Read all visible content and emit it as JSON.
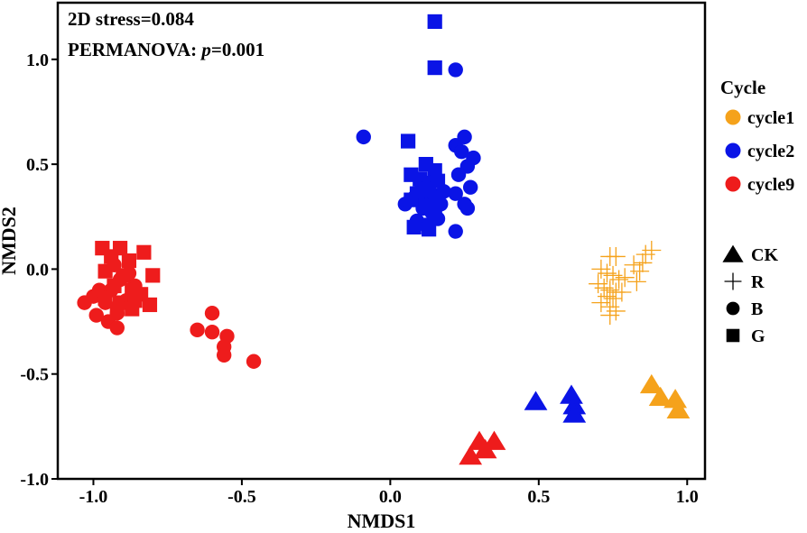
{
  "chart_data": {
    "type": "scatter",
    "title": "",
    "xlabel": "NMDS1",
    "ylabel": "NMDS2",
    "xlim": [
      -1.12,
      1.06
    ],
    "ylim": [
      -1.0,
      1.27
    ],
    "xticks": [
      -1.0,
      -0.5,
      0.0,
      0.5,
      1.0
    ],
    "xtick_labels": [
      "-1.0",
      "-0.5",
      "0.0",
      "0.5",
      "1.0"
    ],
    "yticks": [
      -1.0,
      -0.5,
      0.0,
      0.5,
      1.0
    ],
    "ytick_labels": [
      "-1.0",
      "-0.5",
      "0.0",
      "0.5",
      "1.0"
    ],
    "annotations": {
      "stress": "2D stress=0.084",
      "permanova_prefix": "PERMANOVA: ",
      "permanova_p": "p",
      "permanova_value": "=0.001"
    },
    "legend": {
      "color_title": "Cycle",
      "colors": [
        {
          "label": "cycle1",
          "color": "#F5A21B"
        },
        {
          "label": "cycle2",
          "color": "#0A14E6"
        },
        {
          "label": "cycle9",
          "color": "#EE1C1C"
        }
      ],
      "shapes": [
        {
          "label": "CK",
          "shape": "triangle"
        },
        {
          "label": "R",
          "shape": "plus"
        },
        {
          "label": "B",
          "shape": "circle"
        },
        {
          "label": "G",
          "shape": "square"
        }
      ]
    },
    "series": [
      {
        "name": "cycle1-CK",
        "cycle": "cycle1",
        "shape": "triangle",
        "points": [
          [
            0.88,
            -0.55
          ],
          [
            0.91,
            -0.61
          ],
          [
            0.96,
            -0.62
          ],
          [
            0.97,
            -0.67
          ]
        ]
      },
      {
        "name": "cycle1-R",
        "cycle": "cycle1",
        "shape": "plus",
        "points": [
          [
            0.74,
            0.06
          ],
          [
            0.76,
            0.06
          ],
          [
            0.71,
            0.0
          ],
          [
            0.73,
            -0.02
          ],
          [
            0.75,
            -0.03
          ],
          [
            0.77,
            -0.05
          ],
          [
            0.7,
            -0.07
          ],
          [
            0.72,
            -0.09
          ],
          [
            0.74,
            -0.1
          ],
          [
            0.76,
            -0.11
          ],
          [
            0.78,
            -0.11
          ],
          [
            0.73,
            -0.13
          ],
          [
            0.75,
            -0.14
          ],
          [
            0.71,
            -0.16
          ],
          [
            0.74,
            -0.18
          ],
          [
            0.76,
            -0.2
          ],
          [
            0.74,
            -0.22
          ],
          [
            0.79,
            -0.04
          ],
          [
            0.82,
            0.02
          ],
          [
            0.84,
            -0.01
          ],
          [
            0.86,
            0.07
          ],
          [
            0.85,
            0.03
          ],
          [
            0.88,
            0.09
          ],
          [
            0.83,
            -0.06
          ]
        ]
      },
      {
        "name": "cycle2-CK",
        "cycle": "cycle2",
        "shape": "triangle",
        "points": [
          [
            0.49,
            -0.63
          ],
          [
            0.61,
            -0.6
          ],
          [
            0.62,
            -0.65
          ],
          [
            0.62,
            -0.69
          ]
        ]
      },
      {
        "name": "cycle2-B",
        "cycle": "cycle2",
        "shape": "circle",
        "points": [
          [
            -0.09,
            0.63
          ],
          [
            0.22,
            0.95
          ],
          [
            0.25,
            0.63
          ],
          [
            0.22,
            0.59
          ],
          [
            0.24,
            0.56
          ],
          [
            0.28,
            0.53
          ],
          [
            0.26,
            0.49
          ],
          [
            0.23,
            0.45
          ],
          [
            0.27,
            0.39
          ],
          [
            0.22,
            0.36
          ],
          [
            0.25,
            0.31
          ],
          [
            0.26,
            0.29
          ],
          [
            0.22,
            0.18
          ],
          [
            0.05,
            0.31
          ],
          [
            0.08,
            0.34
          ],
          [
            0.1,
            0.37
          ],
          [
            0.13,
            0.33
          ],
          [
            0.15,
            0.35
          ],
          [
            0.18,
            0.37
          ],
          [
            0.11,
            0.29
          ],
          [
            0.14,
            0.27
          ],
          [
            0.17,
            0.31
          ],
          [
            0.09,
            0.23
          ],
          [
            0.16,
            0.24
          ],
          [
            0.12,
            0.21
          ]
        ]
      },
      {
        "name": "cycle2-G",
        "cycle": "cycle2",
        "shape": "square",
        "points": [
          [
            0.15,
            1.18
          ],
          [
            0.15,
            0.96
          ],
          [
            0.06,
            0.61
          ],
          [
            0.12,
            0.5
          ],
          [
            0.15,
            0.47
          ],
          [
            0.07,
            0.45
          ],
          [
            0.1,
            0.43
          ],
          [
            0.13,
            0.41
          ],
          [
            0.16,
            0.42
          ],
          [
            0.12,
            0.38
          ],
          [
            0.09,
            0.36
          ],
          [
            0.07,
            0.33
          ],
          [
            0.12,
            0.3
          ],
          [
            0.15,
            0.27
          ],
          [
            0.08,
            0.2
          ],
          [
            0.13,
            0.19
          ]
        ]
      },
      {
        "name": "cycle9-CK",
        "cycle": "cycle9",
        "shape": "triangle",
        "points": [
          [
            0.27,
            -0.89
          ],
          [
            0.3,
            -0.82
          ],
          [
            0.32,
            -0.86
          ],
          [
            0.35,
            -0.82
          ]
        ]
      },
      {
        "name": "cycle9-B",
        "cycle": "cycle9",
        "shape": "circle",
        "points": [
          [
            -1.03,
            -0.16
          ],
          [
            -1.0,
            -0.13
          ],
          [
            -0.98,
            -0.1
          ],
          [
            -0.96,
            -0.16
          ],
          [
            -0.99,
            -0.22
          ],
          [
            -0.95,
            -0.25
          ],
          [
            -0.92,
            -0.28
          ],
          [
            -0.92,
            -0.21
          ],
          [
            -0.94,
            -0.1
          ],
          [
            -0.89,
            -0.15
          ],
          [
            -0.91,
            -0.05
          ],
          [
            -0.88,
            -0.02
          ],
          [
            -0.86,
            -0.08
          ],
          [
            -0.93,
            0.02
          ],
          [
            -0.65,
            -0.29
          ],
          [
            -0.6,
            -0.21
          ],
          [
            -0.6,
            -0.3
          ],
          [
            -0.55,
            -0.32
          ],
          [
            -0.56,
            -0.37
          ],
          [
            -0.56,
            -0.41
          ],
          [
            -0.46,
            -0.44
          ]
        ]
      },
      {
        "name": "cycle9-G",
        "cycle": "cycle9",
        "shape": "square",
        "points": [
          [
            -0.97,
            0.1
          ],
          [
            -0.91,
            0.1
          ],
          [
            -0.83,
            0.08
          ],
          [
            -0.94,
            0.06
          ],
          [
            -0.88,
            0.04
          ],
          [
            -0.96,
            -0.01
          ],
          [
            -0.9,
            -0.03
          ],
          [
            -0.8,
            -0.03
          ],
          [
            -0.93,
            -0.08
          ],
          [
            -0.87,
            -0.1
          ],
          [
            -0.84,
            -0.12
          ],
          [
            -0.96,
            -0.14
          ],
          [
            -0.91,
            -0.16
          ],
          [
            -0.86,
            -0.15
          ],
          [
            -0.81,
            -0.17
          ],
          [
            -0.87,
            -0.19
          ],
          [
            -0.92,
            -0.19
          ]
        ]
      }
    ]
  }
}
